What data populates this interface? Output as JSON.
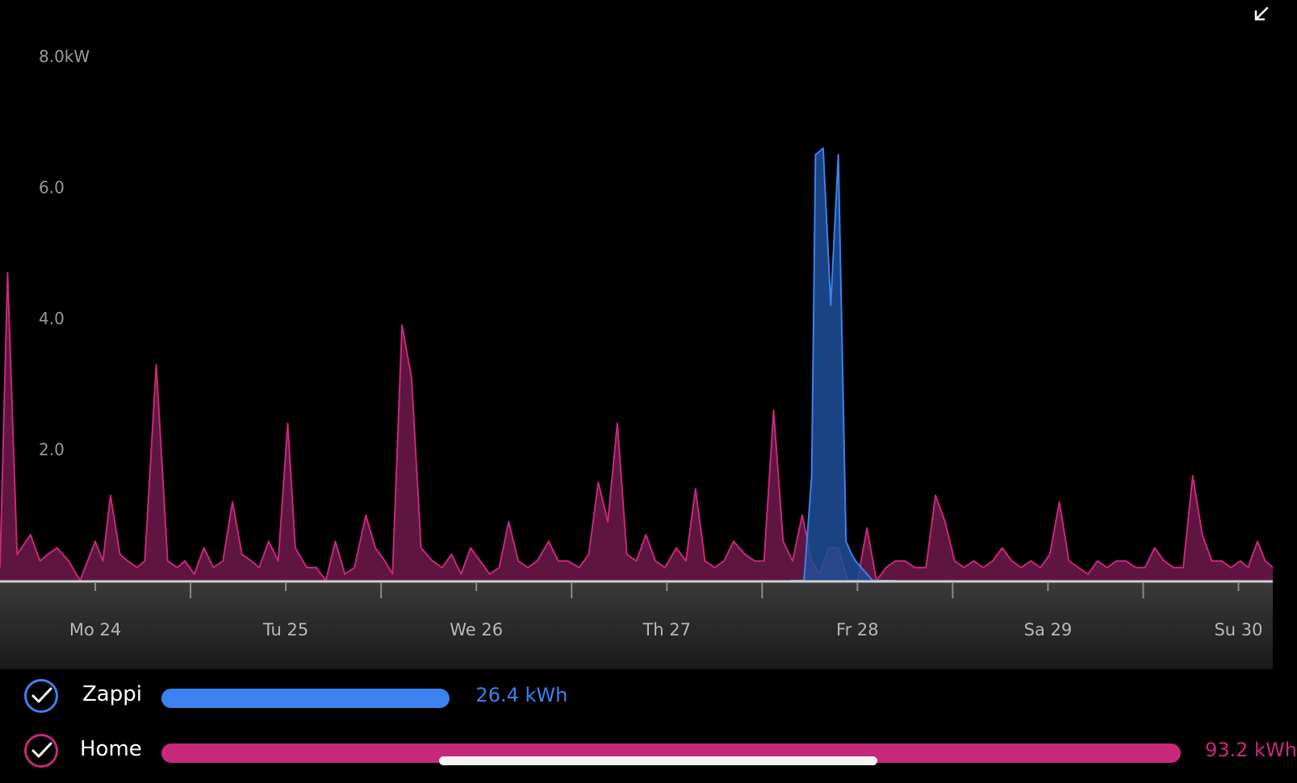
{
  "colors": {
    "zappi": "#3b82f0",
    "zappi_fill": "#1e4f9a",
    "home": "#c8287a",
    "home_fill": "#5e1640",
    "axis_band_top": "#3a3a3a",
    "axis_band_bottom": "#1a1a1a"
  },
  "icons": {
    "expand": "collapse-arrow-icon",
    "check": "checkmark-icon"
  },
  "chart_data": {
    "type": "area",
    "ylabel_unit": "kW",
    "ylim": [
      0,
      8.0
    ],
    "yticks": [
      {
        "value": 8.0,
        "label": "8.0kW"
      },
      {
        "value": 6.0,
        "label": "6.0"
      },
      {
        "value": 4.0,
        "label": "4.0"
      },
      {
        "value": 2.0,
        "label": "2.0"
      }
    ],
    "xlim": [
      0,
      6.68
    ],
    "categories": [
      "Mo 24",
      "Tu 25",
      "We 26",
      "Th 27",
      "Fr 28",
      "Sa 29",
      "Su 30"
    ],
    "grid": false,
    "series": [
      {
        "name": "Home",
        "x": [
          0,
          0.04,
          0.09,
          0.16,
          0.21,
          0.25,
          0.3,
          0.36,
          0.42,
          0.46,
          0.5,
          0.54,
          0.58,
          0.63,
          0.67,
          0.72,
          0.76,
          0.82,
          0.88,
          0.93,
          0.97,
          1.02,
          1.07,
          1.12,
          1.17,
          1.22,
          1.27,
          1.32,
          1.36,
          1.41,
          1.46,
          1.51,
          1.55,
          1.61,
          1.66,
          1.71,
          1.76,
          1.81,
          1.86,
          1.92,
          1.97,
          2.02,
          2.06,
          2.11,
          2.16,
          2.21,
          2.27,
          2.32,
          2.37,
          2.42,
          2.47,
          2.52,
          2.57,
          2.62,
          2.67,
          2.72,
          2.77,
          2.82,
          2.88,
          2.93,
          2.98,
          3.04,
          3.09,
          3.14,
          3.19,
          3.24,
          3.29,
          3.34,
          3.39,
          3.44,
          3.49,
          3.55,
          3.6,
          3.65,
          3.7,
          3.75,
          3.8,
          3.85,
          3.91,
          3.96,
          4.01,
          4.06,
          4.11,
          4.16,
          4.21,
          4.26,
          4.3,
          4.35,
          4.4,
          4.45,
          4.5,
          4.55,
          4.6,
          4.65,
          4.7,
          4.75,
          4.8,
          4.86,
          4.91,
          4.96,
          5.01,
          5.06,
          5.11,
          5.16,
          5.21,
          5.26,
          5.31,
          5.36,
          5.41,
          5.46,
          5.51,
          5.56,
          5.61,
          5.66,
          5.71,
          5.76,
          5.81,
          5.86,
          5.91,
          5.96,
          6.01,
          6.06,
          6.11,
          6.16,
          6.21,
          6.26,
          6.31,
          6.36,
          6.41,
          6.46,
          6.51,
          6.55,
          6.6,
          6.64,
          6.68
        ],
        "values": [
          0.2,
          4.7,
          0.4,
          0.7,
          0.3,
          0.4,
          0.5,
          0.3,
          0.0,
          0.3,
          0.6,
          0.3,
          1.3,
          0.4,
          0.3,
          0.2,
          0.3,
          3.3,
          0.3,
          0.2,
          0.3,
          0.1,
          0.5,
          0.2,
          0.3,
          1.2,
          0.4,
          0.3,
          0.2,
          0.6,
          0.3,
          2.4,
          0.5,
          0.2,
          0.2,
          0.0,
          0.6,
          0.1,
          0.2,
          1.0,
          0.5,
          0.3,
          0.1,
          3.9,
          3.1,
          0.5,
          0.3,
          0.2,
          0.4,
          0.1,
          0.5,
          0.3,
          0.1,
          0.2,
          0.9,
          0.3,
          0.2,
          0.3,
          0.6,
          0.3,
          0.3,
          0.2,
          0.4,
          1.5,
          0.9,
          2.4,
          0.4,
          0.3,
          0.7,
          0.3,
          0.2,
          0.5,
          0.3,
          1.4,
          0.3,
          0.2,
          0.3,
          0.6,
          0.4,
          0.3,
          0.3,
          2.6,
          0.6,
          0.3,
          1.0,
          0.3,
          0.1,
          0.5,
          0.5,
          0.0,
          0.0,
          0.8,
          0.0,
          0.2,
          0.3,
          0.3,
          0.2,
          0.2,
          1.3,
          0.9,
          0.3,
          0.2,
          0.3,
          0.2,
          0.3,
          0.5,
          0.3,
          0.2,
          0.3,
          0.2,
          0.4,
          1.2,
          0.3,
          0.2,
          0.1,
          0.3,
          0.2,
          0.3,
          0.3,
          0.2,
          0.2,
          0.5,
          0.3,
          0.2,
          0.2,
          1.6,
          0.7,
          0.3,
          0.3,
          0.2,
          0.3,
          0.2,
          0.6,
          0.3,
          0.2
        ]
      },
      {
        "name": "Zappi",
        "x": [
          4.15,
          4.22,
          4.26,
          4.28,
          4.32,
          4.36,
          4.4,
          4.44,
          4.47,
          4.49,
          4.52,
          4.55,
          4.58,
          4.61,
          4.65,
          4.68,
          4.7
        ],
        "values": [
          0.0,
          0.0,
          1.6,
          6.5,
          6.6,
          4.2,
          6.5,
          0.6,
          0.4,
          0.3,
          0.2,
          0.1,
          0.0,
          0.0,
          0.0,
          0.0,
          0.0
        ]
      }
    ]
  },
  "legend": [
    {
      "name": "Zappi",
      "value": "26.4 kWh",
      "fraction": 0.283
    },
    {
      "name": "Home",
      "value": "93.2 kWh",
      "fraction": 1.0
    }
  ]
}
